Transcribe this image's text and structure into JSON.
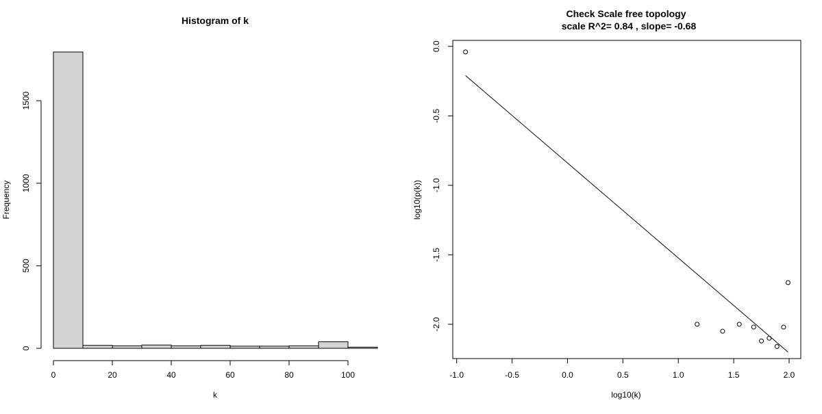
{
  "chart_data": [
    {
      "type": "bar",
      "title": "Histogram of k",
      "xlabel": "k",
      "ylabel": "Frequency",
      "bins": [
        [
          0,
          10
        ],
        [
          10,
          20
        ],
        [
          20,
          30
        ],
        [
          30,
          40
        ],
        [
          40,
          50
        ],
        [
          50,
          60
        ],
        [
          60,
          70
        ],
        [
          70,
          80
        ],
        [
          80,
          90
        ],
        [
          90,
          100
        ],
        [
          100,
          110
        ]
      ],
      "values": [
        1795,
        18,
        15,
        20,
        15,
        18,
        13,
        13,
        15,
        40,
        7
      ],
      "xlim": [
        0,
        110
      ],
      "ylim": [
        0,
        1795
      ],
      "xticks": [
        0,
        20,
        40,
        60,
        80,
        100
      ],
      "yticks": [
        0,
        500,
        1000,
        1500
      ],
      "colors": {
        "bar_fill": "#d3d3d3",
        "bar_stroke": "#000000"
      }
    },
    {
      "type": "scatter",
      "title": "Check Scale free topology",
      "subtitle": "scale R^2= 0.84 , slope= -0.68",
      "xlabel": "log10(k)",
      "ylabel": "log10(p(k))",
      "points": [
        {
          "x": -0.92,
          "y": -0.04
        },
        {
          "x": 1.17,
          "y": -2.0
        },
        {
          "x": 1.4,
          "y": -2.05
        },
        {
          "x": 1.55,
          "y": -2.0
        },
        {
          "x": 1.68,
          "y": -2.02
        },
        {
          "x": 1.75,
          "y": -2.12
        },
        {
          "x": 1.82,
          "y": -2.1
        },
        {
          "x": 1.89,
          "y": -2.16
        },
        {
          "x": 1.95,
          "y": -2.02
        },
        {
          "x": 1.99,
          "y": -1.7
        }
      ],
      "fit_line": {
        "x": [
          -0.92,
          1.99
        ],
        "y": [
          -0.21,
          -2.2
        ]
      },
      "xlim": [
        -1.0,
        2.0
      ],
      "ylim": [
        -2.2,
        0.0
      ],
      "xticks": [
        -1.0,
        -0.5,
        0.0,
        0.5,
        1.0,
        1.5,
        2.0
      ],
      "xtick_labels": [
        "-1.0",
        "-0.5",
        "0.0",
        "0.5",
        "1.0",
        "1.5",
        "2.0"
      ],
      "yticks": [
        0.0,
        -0.5,
        -1.0,
        -1.5,
        -2.0
      ],
      "ytick_labels": [
        "0.0",
        "-0.5",
        "-1.0",
        "-1.5",
        "-2.0"
      ],
      "box": true,
      "grid": false
    }
  ]
}
